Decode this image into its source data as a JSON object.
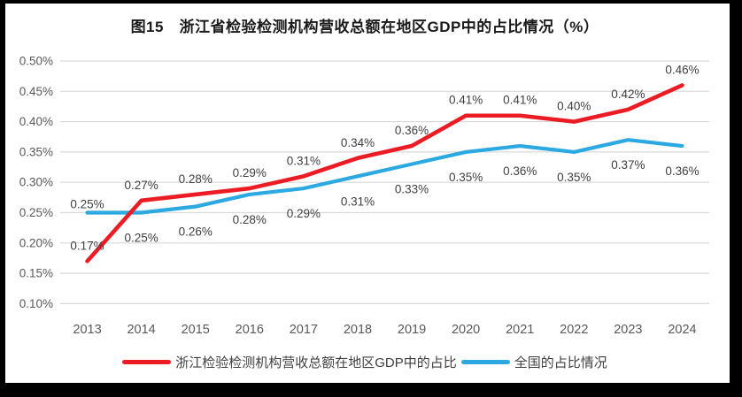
{
  "chart_data": {
    "type": "line",
    "title": "图15　浙江省检验检测机构营收总额在地区GDP中的占比情况（%）",
    "categories": [
      "2013",
      "2014",
      "2015",
      "2016",
      "2017",
      "2018",
      "2019",
      "2020",
      "2021",
      "2022",
      "2023",
      "2024"
    ],
    "y_unit": "%",
    "ylim": [
      0.1,
      0.5
    ],
    "y_tick_step": 0.05,
    "y_tick_labels": [
      "0.50%",
      "0.45%",
      "0.40%",
      "0.35%",
      "0.30%",
      "0.25%",
      "0.20%",
      "0.15%",
      "0.10%"
    ],
    "grid": "horizontal",
    "legend_position": "bottom",
    "series": [
      {
        "id": "zhejiang",
        "name": "浙江检验检测机构营收总额在地区GDP中的占比",
        "color": "#EC1C24",
        "stroke_width": 4.6,
        "values": [
          0.17,
          0.27,
          0.28,
          0.29,
          0.31,
          0.34,
          0.36,
          0.41,
          0.41,
          0.4,
          0.42,
          0.46
        ],
        "labels": [
          "0.17%",
          "0.27%",
          "0.28%",
          "0.29%",
          "0.31%",
          "0.34%",
          "0.36%",
          "0.41%",
          "0.41%",
          "0.40%",
          "0.42%",
          "0.46%"
        ],
        "label_positions": [
          "above",
          "above",
          "above",
          "above",
          "above",
          "above",
          "above",
          "above",
          "above",
          "above",
          "above",
          "above"
        ],
        "label_dy": {}
      },
      {
        "id": "national",
        "name": "全国的占比情况",
        "color": "#2BA9E0",
        "stroke_width": 4.2,
        "values": [
          0.25,
          0.25,
          0.26,
          0.28,
          0.29,
          0.31,
          0.33,
          0.35,
          0.36,
          0.35,
          0.37,
          0.36
        ],
        "labels": [
          "0.25%",
          "0.25%",
          "0.26%",
          "0.28%",
          "0.29%",
          "0.31%",
          "0.33%",
          "0.35%",
          "0.36%",
          "0.35%",
          "0.37%",
          "0.36%"
        ],
        "label_positions": [
          "above",
          "below",
          "below",
          "below",
          "below",
          "below",
          "below",
          "below",
          "below",
          "below",
          "below",
          "below"
        ],
        "label_dy": {
          "0": -5
        }
      }
    ],
    "style": {
      "frame_color": "#000000",
      "background_color": "#ffffff",
      "grid_color": "#D9D9D9",
      "axis_label_color": "#595959",
      "data_label_color": "#404040",
      "title_color": "#1A1A1A"
    }
  }
}
